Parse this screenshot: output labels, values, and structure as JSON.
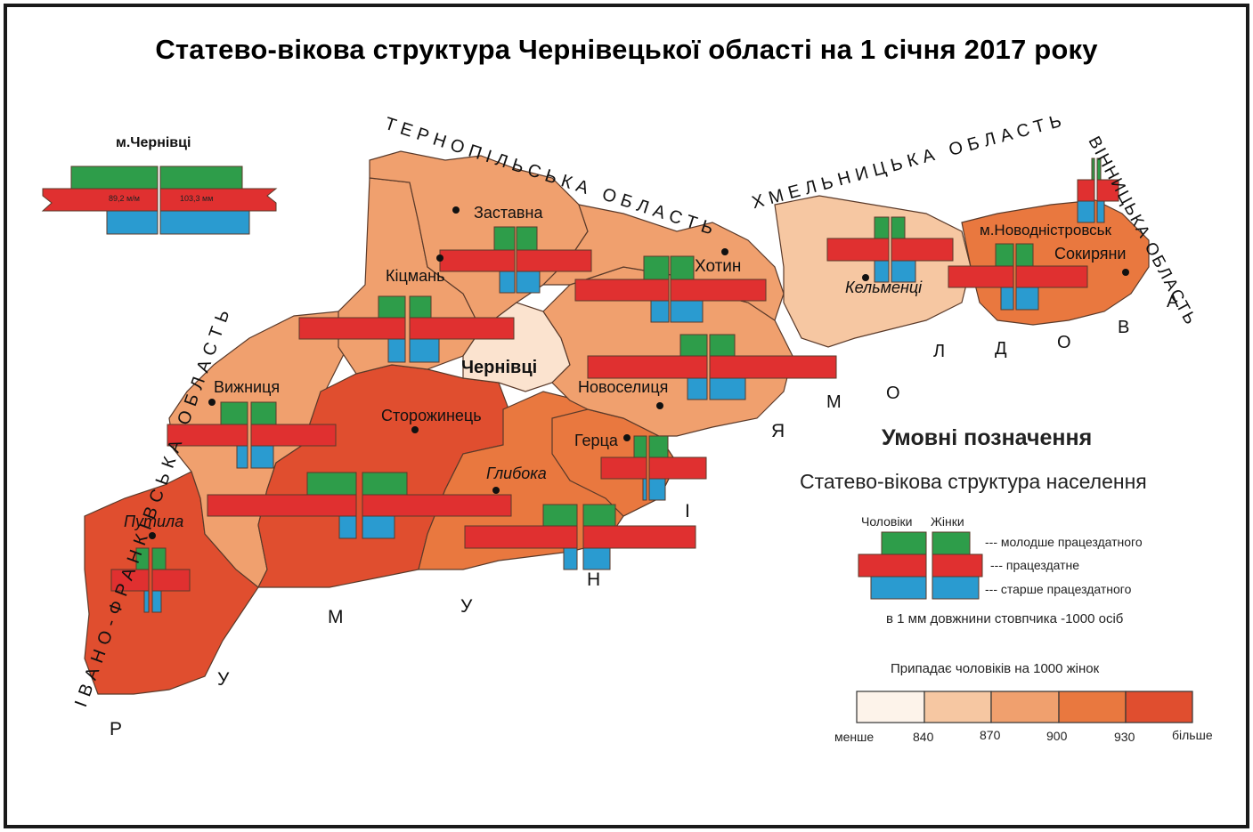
{
  "title": "Статево-вікова структура Чернівецької області на 1 січня 2017 року",
  "cities": {
    "chernivtsi_inset": "м.Чернівці",
    "inset_men": "89,2 м/м",
    "inset_women": "103,3 мм",
    "zastavna": "Заставна",
    "kitsman": "Кіцмань",
    "khotyn": "Хотин",
    "kelmentsi": "Кельменці",
    "novodnistrovsk": "м.Новодністровськ",
    "sokyriany": "Сокиряни",
    "chernivtsi": "Чернівці",
    "novoselytsia": "Новоселиця",
    "vyzhnytsia": "Вижниця",
    "storozhynets": "Сторожинець",
    "hertsa": "Герца",
    "hlyboka": "Глибока",
    "putyla": "Путила"
  },
  "neighbors": {
    "ternopil": "ТЕРНОПІЛЬСЬКА ОБЛАСТЬ",
    "khmelnytskyi": "ХМЕЛЬНИЦЬКА ОБЛАСТЬ",
    "vinnytsia": "ВІННИЦЬКА ОБЛАСТЬ",
    "ivano_frankivsk": "ІВАНО-ФРАНКІВСЬКА ОБЛАСТЬ",
    "romania_letters": [
      "Р",
      "У",
      "М",
      "У",
      "Н",
      "І",
      "Я"
    ],
    "moldova_letters": [
      "М",
      "О",
      "Л",
      "Д",
      "О",
      "В",
      "А"
    ]
  },
  "legend": {
    "heading": "Умовні позначення",
    "subheading": "Статево-вікова структура населення",
    "men": "Чоловіки",
    "women": "Жінки",
    "young": "--- молодше працездатного",
    "working": "--- працездатне",
    "old": "--- старше працездатного",
    "scale_note": "в 1 мм довжнини стовпчика -1000 осіб",
    "ratio_title": "Припадає чоловіків на 1000 жінок",
    "ratio_labels": [
      "менше",
      "840",
      "870",
      "900",
      "930",
      "більше"
    ],
    "ratio_colors": [
      "#fdf3ea",
      "#f6c7a2",
      "#f0a06e",
      "#e9783f",
      "#e04e2f"
    ]
  },
  "colors": {
    "green": "#2e9d4a",
    "red": "#e03030",
    "blue": "#2a9bd0",
    "border": "#5a3a2a"
  }
}
